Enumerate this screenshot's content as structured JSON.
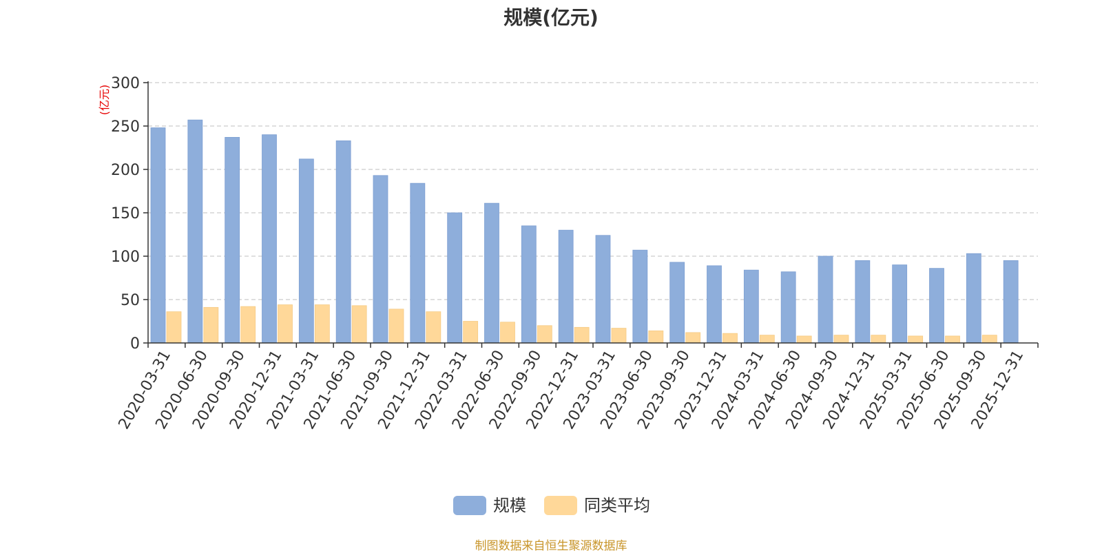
{
  "chart_data": {
    "type": "bar",
    "title": "规模(亿元)",
    "y_unit_label": "(亿元)",
    "ylim": [
      0,
      300
    ],
    "yticks": [
      0,
      50,
      100,
      150,
      200,
      250,
      300
    ],
    "grid": true,
    "legend_position": "bottom-center",
    "categories": [
      "2020-03-31",
      "2020-06-30",
      "2020-09-30",
      "2020-12-31",
      "2021-03-31",
      "2021-06-30",
      "2021-09-30",
      "2021-12-31",
      "2022-03-31",
      "2022-06-30",
      "2022-09-30",
      "2022-12-31",
      "2023-03-31",
      "2023-06-30",
      "2023-09-30",
      "2023-12-31",
      "2024-03-31",
      "2024-06-30",
      "2024-09-30",
      "2024-12-31",
      "2025-03-31",
      "2025-06-30",
      "2025-09-30",
      "2025-12-31"
    ],
    "series": [
      {
        "name": "规模",
        "color": "#8eaedb",
        "values": [
          248,
          257,
          237,
          240,
          212,
          233,
          193,
          184,
          150,
          161,
          135,
          130,
          124,
          107,
          93,
          89,
          84,
          82,
          100,
          95,
          90,
          86,
          103,
          95
        ]
      },
      {
        "name": "同类平均",
        "color": "#ffd899",
        "values": [
          36,
          41,
          42,
          44,
          44,
          43,
          39,
          36,
          25,
          24,
          20,
          18,
          17,
          14,
          12,
          11,
          9,
          8,
          9,
          9,
          8,
          8,
          9,
          null
        ]
      }
    ]
  },
  "source": {
    "text": "制图数据来自恒生聚源数据库",
    "color": "#c8952a"
  },
  "colors": {
    "axis": "#333333",
    "grid": "#cccccc",
    "unit_label": "#e60000"
  }
}
